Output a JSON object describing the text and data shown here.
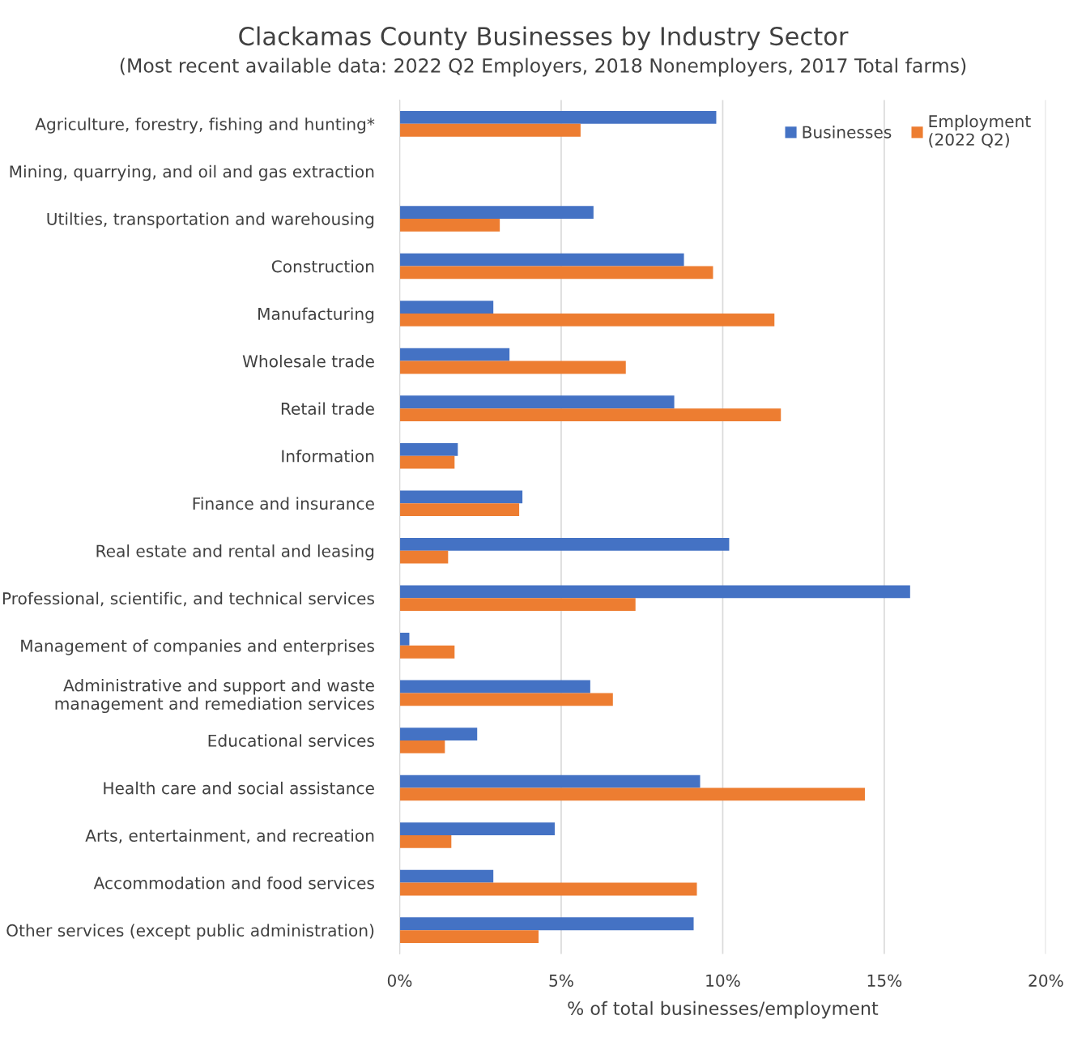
{
  "chart_data": {
    "type": "bar",
    "orientation": "horizontal",
    "title": "Clackamas County Businesses by Industry Sector",
    "subtitle": "(Most recent available data: 2022 Q2 Employers, 2018 Nonemployers, 2017 Total farms)",
    "xlabel": "% of total businesses/employment",
    "categories": [
      "Agriculture, forestry, fishing and hunting*",
      "Mining, quarrying, and oil and gas extraction",
      "Utilties, transportation and warehousing",
      "Construction",
      "Manufacturing",
      "Wholesale trade",
      "Retail trade",
      "Information",
      "Finance and insurance",
      "Real estate and rental and leasing",
      "Professional, scientific, and technical services",
      "Management of companies and enterprises",
      "Administrative and support and waste\nmanagement and remediation services",
      "Educational services",
      "Health care and social assistance",
      "Arts, entertainment, and recreation",
      "Accommodation and food services",
      "Other services (except public administration)"
    ],
    "series": [
      {
        "name": "Businesses",
        "color": "#4472c4",
        "values": [
          9.8,
          null,
          6.0,
          8.8,
          2.9,
          3.4,
          8.5,
          1.8,
          3.8,
          10.2,
          15.8,
          0.3,
          5.9,
          2.4,
          9.3,
          4.8,
          2.9,
          9.1
        ]
      },
      {
        "name": "Employment\n(2022 Q2)",
        "color": "#ed7d31",
        "values": [
          5.6,
          null,
          3.1,
          9.7,
          11.6,
          7.0,
          11.8,
          1.7,
          3.7,
          1.5,
          7.3,
          1.7,
          6.6,
          1.4,
          14.4,
          1.6,
          9.2,
          4.3
        ]
      }
    ],
    "xlim": [
      0,
      20
    ],
    "xticks": [
      {
        "value": 0,
        "label": "0%"
      },
      {
        "value": 5,
        "label": "5%"
      },
      {
        "value": 10,
        "label": "10%"
      },
      {
        "value": 15,
        "label": "15%"
      },
      {
        "value": 20,
        "label": "20%"
      }
    ],
    "grid": "x",
    "legend": "top right"
  }
}
